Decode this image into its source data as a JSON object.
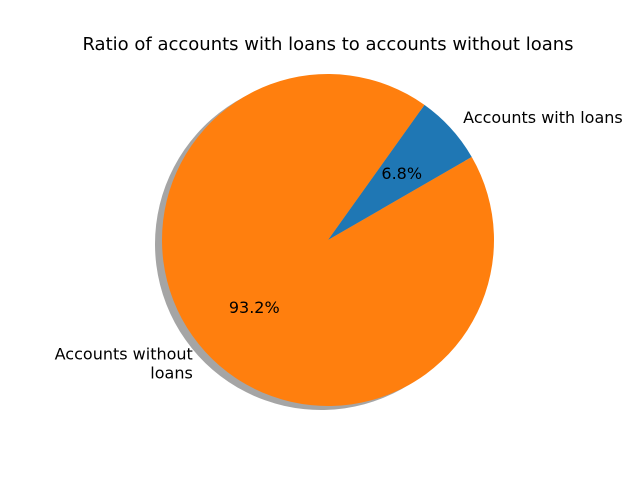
{
  "chart_data": {
    "type": "pie",
    "title": "Ratio of accounts with loans to accounts without loans",
    "slices": [
      {
        "label": "Accounts with loans",
        "value": 6.8,
        "pct_label": "6.8%",
        "color": "#1f77b4"
      },
      {
        "label": "Accounts without loans",
        "value": 93.2,
        "pct_label": "93.2%",
        "color": "#ff7f0e"
      }
    ],
    "start_angle_deg": 30,
    "shadow": true
  }
}
